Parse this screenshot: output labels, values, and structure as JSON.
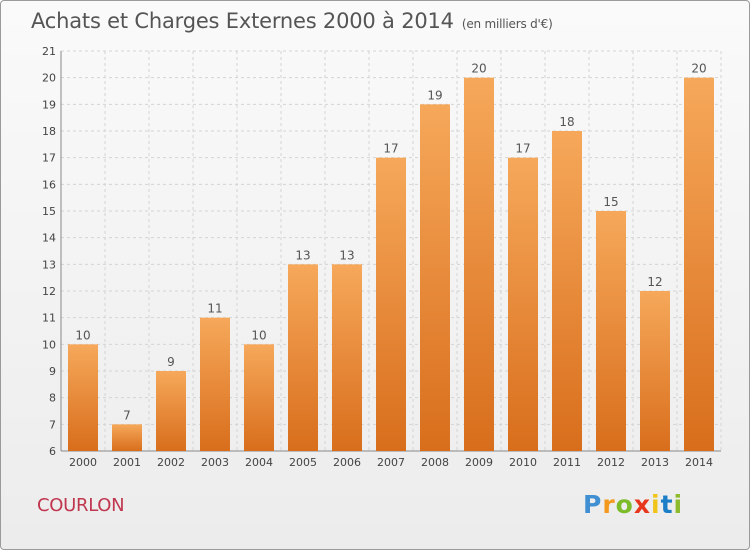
{
  "header": {
    "title": "Achats et Charges Externes 2000 à 2014",
    "unit": "(en milliers d'€)"
  },
  "footer": {
    "place": "COURLON",
    "logo": "Proxiti"
  },
  "colors": {
    "bar_light": "#f6a85a",
    "bar_dark": "#d86e1c",
    "grid": "#d4d4d4",
    "place_text": "#c0364f"
  },
  "chart_data": {
    "type": "bar",
    "title": "Achats et Charges Externes 2000 à 2014",
    "subtitle": "(en milliers d'€)",
    "xlabel": "",
    "ylabel": "",
    "categories": [
      "2000",
      "2001",
      "2002",
      "2003",
      "2004",
      "2005",
      "2006",
      "2007",
      "2008",
      "2009",
      "2010",
      "2011",
      "2012",
      "2013",
      "2014"
    ],
    "values": [
      10,
      7,
      9,
      11,
      10,
      13,
      13,
      17,
      19,
      20,
      17,
      18,
      15,
      12,
      20
    ],
    "ylim": [
      6,
      21
    ],
    "yticks": [
      6,
      7,
      8,
      9,
      10,
      11,
      12,
      13,
      14,
      15,
      16,
      17,
      18,
      19,
      20,
      21
    ],
    "grid": true,
    "data_labels": true
  }
}
